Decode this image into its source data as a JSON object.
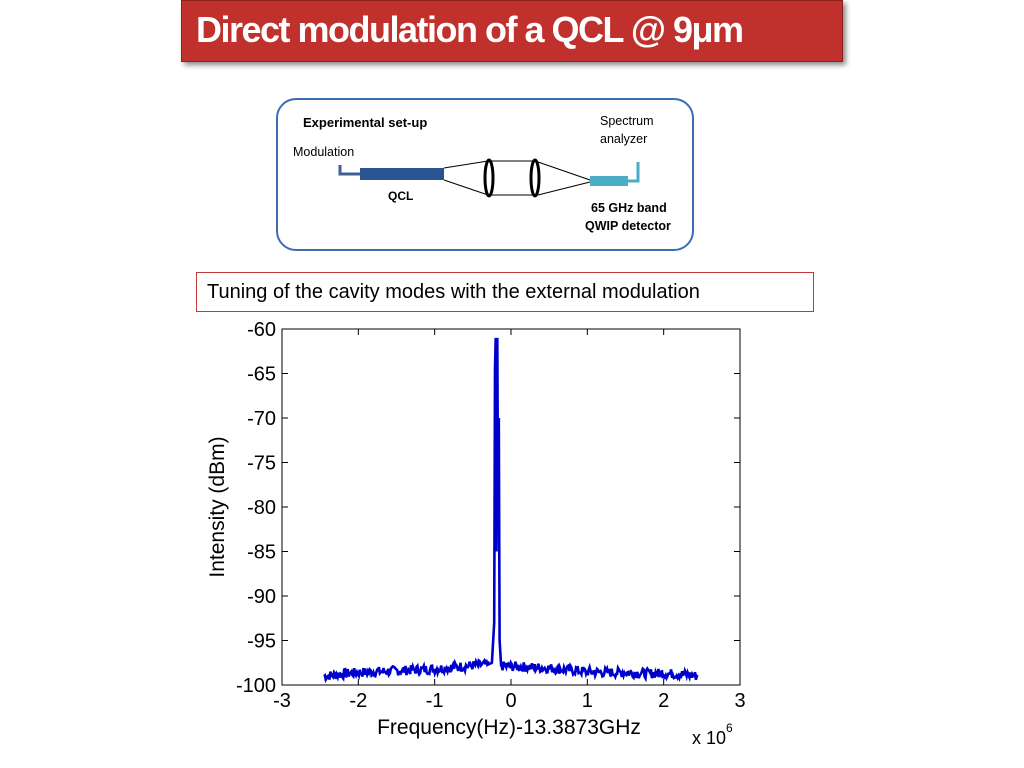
{
  "slide": {
    "title": "Direct modulation of a QCL @ 9μm",
    "setup": {
      "heading": "Experimental set-up",
      "modulation_label": "Modulation",
      "qcl_label": "QCL",
      "spectrum_label_line1": "Spectrum",
      "spectrum_label_line2": "analyzer",
      "detector_label_line1": "65 GHz band",
      "detector_label_line2": "QWIP detector",
      "colors": {
        "qcl_bar": "#2a5391",
        "detector": "#4bacc6",
        "modulation_line": "#3f5f97"
      }
    },
    "caption": "Tuning of the cavity modes with the external modulation"
  },
  "chart_data": {
    "type": "line",
    "xlabel": "Frequency(Hz)-13.3873GHz",
    "ylabel": "Intensity (dBm)",
    "x_multiplier_label": "x 10",
    "x_multiplier_exponent": "6",
    "xlim": [
      -3,
      3
    ],
    "ylim": [
      -100,
      -60
    ],
    "x_ticks": [
      -3,
      -2,
      -1,
      0,
      1,
      2,
      3
    ],
    "y_ticks": [
      -60,
      -65,
      -70,
      -75,
      -80,
      -85,
      -90,
      -95,
      -100
    ],
    "grid": false,
    "line_color": "#0000cc",
    "series": [
      {
        "x": [
          -2.45,
          -2.25,
          -2.0,
          -1.75,
          -1.5,
          -1.25,
          -1.0,
          -0.75,
          -0.5,
          -0.3,
          -0.25,
          -0.22,
          -0.21,
          -0.2,
          -0.19,
          -0.18,
          -0.17,
          -0.16,
          -0.15,
          -0.13,
          -0.1,
          0.0,
          0.25,
          0.5,
          0.75,
          1.0,
          1.25,
          1.5,
          1.75,
          2.0,
          2.25,
          2.45
        ],
        "values": [
          -99.0,
          -98.8,
          -98.6,
          -98.5,
          -98.4,
          -98.3,
          -98.2,
          -98.0,
          -97.8,
          -97.7,
          -97.5,
          -93.0,
          -64.5,
          -61.0,
          -85.0,
          -61.0,
          -79.0,
          -70.0,
          -95.0,
          -97.8,
          -97.9,
          -97.9,
          -98.0,
          -98.1,
          -98.3,
          -98.5,
          -98.6,
          -98.6,
          -98.7,
          -98.7,
          -98.8,
          -99.0
        ]
      }
    ]
  }
}
